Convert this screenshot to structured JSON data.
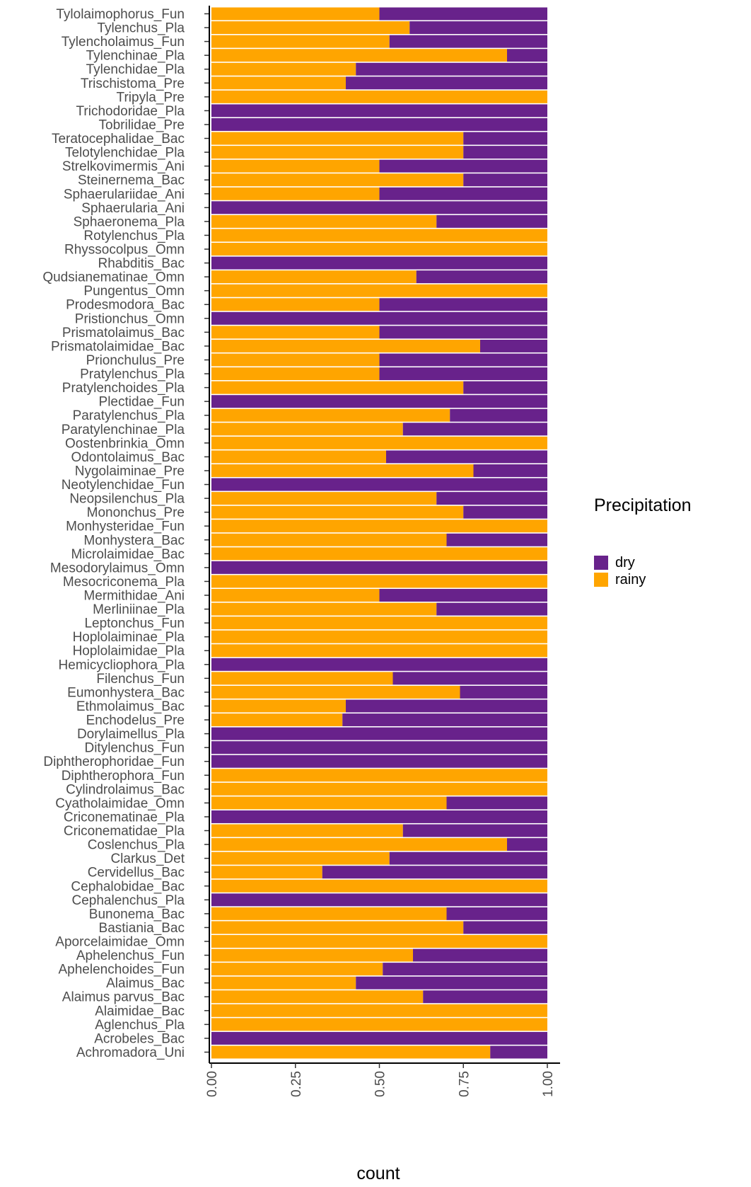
{
  "chart_data": {
    "type": "bar",
    "orientation": "horizontal",
    "stacked": "fill",
    "xlabel": "count",
    "ylabel": "",
    "xlim": [
      0,
      1
    ],
    "x_ticks": [
      "0.00",
      "0.25",
      "0.50",
      "0.75",
      "1.00"
    ],
    "x_tick_values": [
      0,
      0.25,
      0.5,
      0.75,
      1.0
    ],
    "grid": false,
    "legend": {
      "title": "Precipitation",
      "position": "right",
      "entries": [
        {
          "name": "dry",
          "color": "#68228b"
        },
        {
          "name": "rainy",
          "color": "#ffa500"
        }
      ]
    },
    "categories": [
      "Tylolaimophorus_Fun",
      "Tylenchus_Pla",
      "Tylencholaimus_Fun",
      "Tylenchinae_Pla",
      "Tylenchidae_Pla",
      "Trischistoma_Pre",
      "Tripyla_Pre",
      "Trichodoridae_Pla",
      "Tobrilidae_Pre",
      "Teratocephalidae_Bac",
      "Telotylenchidae_Pla",
      "Strelkovimermis_Ani",
      "Steinernema_Bac",
      "Sphaerulariidae_Ani",
      "Sphaerularia_Ani",
      "Sphaeronema_Pla",
      "Rotylenchus_Pla",
      "Rhyssocolpus_Omn",
      "Rhabditis_Bac",
      "Qudsianematinae_Omn",
      "Pungentus_Omn",
      "Prodesmodora_Bac",
      "Pristionchus_Omn",
      "Prismatolaimus_Bac",
      "Prismatolaimidae_Bac",
      "Prionchulus_Pre",
      "Pratylenchus_Pla",
      "Pratylenchoides_Pla",
      "Plectidae_Fun",
      "Paratylenchus_Pla",
      "Paratylenchinae_Pla",
      "Oostenbrinkia_Omn",
      "Odontolaimus_Bac",
      "Nygolaiminae_Pre",
      "Neotylenchidae_Fun",
      "Neopsilenchus_Pla",
      "Mononchus_Pre",
      "Monhysteridae_Fun",
      "Monhystera_Bac",
      "Microlaimidae_Bac",
      "Mesodorylaimus_Omn",
      "Mesocriconema_Pla",
      "Mermithidae_Ani",
      "Merliniinae_Pla",
      "Leptonchus_Fun",
      "Hoplolaiminae_Pla",
      "Hoplolaimidae_Pla",
      "Hemicycliophora_Pla",
      "Filenchus_Fun",
      "Eumonhystera_Bac",
      "Ethmolaimus_Bac",
      "Enchodelus_Pre",
      "Dorylaimellus_Pla",
      "Ditylenchus_Fun",
      "Diphtherophoridae_Fun",
      "Diphtherophora_Fun",
      "Cylindrolaimus_Bac",
      "Cyatholaimidae_Omn",
      "Criconematinae_Pla",
      "Criconematidae_Pla",
      "Coslenchus_Pla",
      "Clarkus_Det",
      "Cervidellus_Bac",
      "Cephalobidae_Bac",
      "Cephalenchus_Pla",
      "Bunonema_Bac",
      "Bastiania_Bac",
      "Aporcelaimidae_Omn",
      "Aphelenchus_Fun",
      "Aphelenchoides_Fun",
      "Alaimus_Bac",
      "Alaimus parvus_Bac",
      "Alaimidae_Bac",
      "Aglenchus_Pla",
      "Acrobeles_Bac",
      "Achromadora_Uni"
    ],
    "series": [
      {
        "name": "rainy",
        "values": [
          0.5,
          0.59,
          0.53,
          0.88,
          0.43,
          0.4,
          1.0,
          0.0,
          0.0,
          0.75,
          0.75,
          0.5,
          0.75,
          0.5,
          0.0,
          0.67,
          1.0,
          1.0,
          0.0,
          0.61,
          1.0,
          0.5,
          0.0,
          0.5,
          0.8,
          0.5,
          0.5,
          0.75,
          0.0,
          0.71,
          0.57,
          1.0,
          0.52,
          0.78,
          0.0,
          0.67,
          0.75,
          1.0,
          0.7,
          1.0,
          0.0,
          1.0,
          0.5,
          0.67,
          1.0,
          1.0,
          1.0,
          0.0,
          0.54,
          0.74,
          0.4,
          0.39,
          0.0,
          0.0,
          0.0,
          1.0,
          1.0,
          0.7,
          0.0,
          0.57,
          0.88,
          0.53,
          0.33,
          1.0,
          0.0,
          0.7,
          0.75,
          1.0,
          0.6,
          0.51,
          0.43,
          0.63,
          1.0,
          1.0,
          0.0,
          0.83
        ]
      },
      {
        "name": "dry",
        "values": [
          0.5,
          0.41,
          0.47,
          0.12,
          0.57,
          0.6,
          0.0,
          1.0,
          1.0,
          0.25,
          0.25,
          0.5,
          0.25,
          0.5,
          1.0,
          0.33,
          0.0,
          0.0,
          1.0,
          0.39,
          0.0,
          0.5,
          1.0,
          0.5,
          0.2,
          0.5,
          0.5,
          0.25,
          1.0,
          0.29,
          0.43,
          0.0,
          0.48,
          0.22,
          1.0,
          0.33,
          0.25,
          0.0,
          0.3,
          0.0,
          1.0,
          0.0,
          0.5,
          0.33,
          0.0,
          0.0,
          0.0,
          1.0,
          0.46,
          0.26,
          0.6,
          0.61,
          1.0,
          1.0,
          1.0,
          0.0,
          0.0,
          0.3,
          1.0,
          0.43,
          0.12,
          0.47,
          0.67,
          0.0,
          1.0,
          0.3,
          0.25,
          0.0,
          0.4,
          0.49,
          0.57,
          0.37,
          0.0,
          0.0,
          1.0,
          0.17
        ]
      }
    ]
  }
}
